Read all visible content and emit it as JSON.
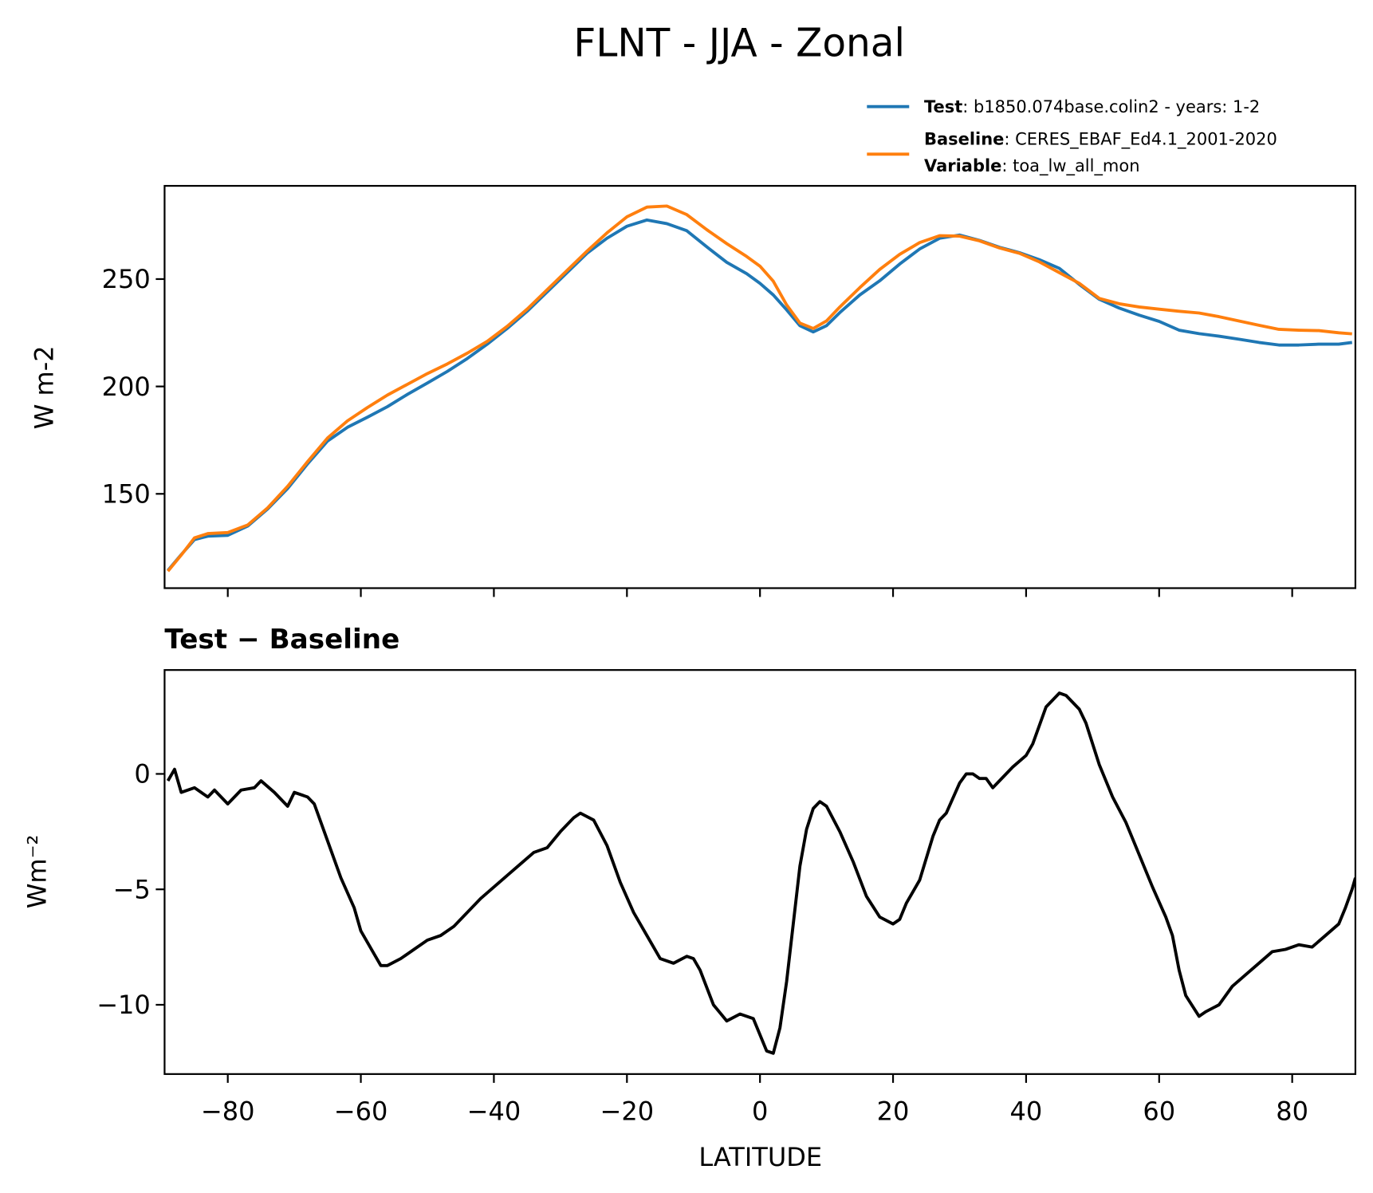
{
  "title": "FLNT - JJA - Zonal",
  "chart_data": [
    {
      "type": "line",
      "ylabel": "W m-2",
      "x": [
        -89,
        -87,
        -85,
        -83,
        -80,
        -77,
        -74,
        -71,
        -68,
        -65,
        -62,
        -59,
        -56,
        -53,
        -50,
        -47,
        -44,
        -41,
        -38,
        -35,
        -32,
        -29,
        -26,
        -23,
        -20,
        -17,
        -14,
        -11,
        -8,
        -5,
        -2,
        0,
        2,
        4,
        6,
        8,
        10,
        12,
        15,
        18,
        21,
        24,
        27,
        30,
        33,
        36,
        39,
        42,
        45,
        48,
        51,
        54,
        57,
        60,
        63,
        66,
        69,
        72,
        75,
        78,
        81,
        84,
        87,
        89
      ],
      "series": [
        {
          "name": "Test",
          "description": ": b1850.074base.colin2 - years: 1-2",
          "color": "#1f77b4",
          "values": [
            114.3,
            121.7,
            128.7,
            130.3,
            130.7,
            135,
            143,
            152.5,
            164,
            174.6,
            181,
            185.7,
            190.6,
            196.3,
            201.6,
            207,
            213,
            219.7,
            227,
            235,
            244,
            253,
            262,
            269,
            274.6,
            277.5,
            275.8,
            272.5,
            265,
            257.8,
            252.5,
            248,
            242.6,
            235.7,
            228.3,
            225.4,
            228.3,
            234.4,
            242.6,
            249.2,
            257,
            264,
            269,
            270.5,
            268,
            264.8,
            262.3,
            259,
            255,
            247.5,
            240.6,
            236.5,
            233.2,
            230.3,
            226.2,
            224.6,
            223.4,
            222,
            220.5,
            219.3,
            219.3,
            219.7,
            219.7,
            220.5
          ]
        },
        {
          "name": "Baseline",
          "description": ": CERES_EBAF_Ed4.1_2001-2020",
          "color": "#ff7f0e",
          "values": [
            114,
            121.5,
            129.5,
            131.5,
            132,
            135.5,
            143.5,
            153.5,
            165,
            176,
            184,
            190.2,
            196,
            201,
            206,
            210.5,
            215.5,
            221,
            228,
            236,
            245,
            254,
            263,
            271.5,
            279,
            283.5,
            284,
            280,
            273,
            266.5,
            260.5,
            256,
            249,
            238,
            229.5,
            227,
            230.5,
            237,
            246,
            254.5,
            261.5,
            267,
            270.2,
            270,
            267.8,
            264.5,
            262,
            258,
            253,
            248,
            241,
            238.5,
            237,
            236,
            235,
            234.2,
            232.5,
            230.5,
            228.5,
            226.6,
            226.2,
            226,
            225,
            224.5
          ]
        }
      ],
      "variable": {
        "name": "Variable",
        "description": ": toa_lw_all_mon"
      },
      "xlim": [
        -89.5,
        89.5
      ],
      "ylim": [
        106.1,
        293.4
      ],
      "yticks": [
        150,
        200,
        250
      ]
    },
    {
      "type": "line",
      "title": "Test − Baseline",
      "xlabel": "LATITUDE",
      "ylabel": "Wm⁻²",
      "x": [
        -89,
        -88,
        -87,
        -85,
        -83,
        -82,
        -80,
        -78,
        -76,
        -75,
        -73,
        -71,
        -70,
        -68,
        -67,
        -65,
        -63,
        -61,
        -60,
        -58,
        -57,
        -56,
        -54,
        -52,
        -50,
        -48,
        -46,
        -44,
        -42,
        -40,
        -38,
        -36,
        -34,
        -32,
        -30,
        -28,
        -27,
        -25,
        -23,
        -21,
        -19,
        -17,
        -15,
        -13,
        -11,
        -10,
        -9,
        -7,
        -5,
        -3,
        -1,
        1,
        2,
        3,
        4,
        5,
        6,
        7,
        8,
        9,
        10,
        12,
        14,
        16,
        18,
        20,
        21,
        22,
        24,
        26,
        27,
        28,
        30,
        31,
        32,
        33,
        34,
        35,
        36,
        38,
        40,
        41,
        43,
        45,
        46,
        48,
        49,
        51,
        53,
        55,
        57,
        59,
        61,
        62,
        63,
        64,
        66,
        67,
        69,
        71,
        73,
        75,
        77,
        79,
        81,
        83,
        85,
        87,
        88,
        89,
        89.5
      ],
      "series": [
        {
          "name": "Test − Baseline",
          "color": "#000000",
          "values": [
            -0.3,
            0.2,
            -0.8,
            -0.6,
            -1.0,
            -0.7,
            -1.3,
            -0.7,
            -0.6,
            -0.3,
            -0.8,
            -1.4,
            -0.8,
            -1.0,
            -1.3,
            -2.9,
            -4.5,
            -5.8,
            -6.8,
            -7.8,
            -8.3,
            -8.3,
            -8.0,
            -7.6,
            -7.2,
            -7.0,
            -6.6,
            -6.0,
            -5.4,
            -4.9,
            -4.4,
            -3.9,
            -3.4,
            -3.2,
            -2.5,
            -1.9,
            -1.7,
            -2.0,
            -3.1,
            -4.7,
            -6.0,
            -7.0,
            -8.0,
            -8.2,
            -7.9,
            -8.0,
            -8.5,
            -10.0,
            -10.7,
            -10.4,
            -10.6,
            -12.0,
            -12.1,
            -11.0,
            -9.0,
            -6.5,
            -4.0,
            -2.4,
            -1.5,
            -1.2,
            -1.4,
            -2.5,
            -3.8,
            -5.3,
            -6.2,
            -6.5,
            -6.3,
            -5.6,
            -4.6,
            -2.7,
            -2.0,
            -1.7,
            -0.4,
            0.0,
            0.0,
            -0.2,
            -0.2,
            -0.6,
            -0.3,
            0.3,
            0.8,
            1.3,
            2.9,
            3.5,
            3.4,
            2.8,
            2.2,
            0.4,
            -1.0,
            -2.1,
            -3.5,
            -4.9,
            -6.2,
            -7.0,
            -8.5,
            -9.6,
            -10.5,
            -10.3,
            -10.0,
            -9.2,
            -8.7,
            -8.2,
            -7.7,
            -7.6,
            -7.4,
            -7.5,
            -7.0,
            -6.5,
            -5.8,
            -5.0,
            -4.5
          ]
        }
      ],
      "xlim": [
        -89.5,
        89.5
      ],
      "ylim": [
        -13,
        4.5
      ],
      "xticks": [
        {
          "value": -80,
          "label": "−80"
        },
        {
          "value": -60,
          "label": "−60"
        },
        {
          "value": -40,
          "label": "−40"
        },
        {
          "value": -20,
          "label": "−20"
        },
        0,
        20,
        40,
        60,
        80
      ],
      "yticks": [
        {
          "value": -10,
          "label": "−10"
        },
        {
          "value": -5,
          "label": "−5"
        },
        0
      ]
    }
  ]
}
